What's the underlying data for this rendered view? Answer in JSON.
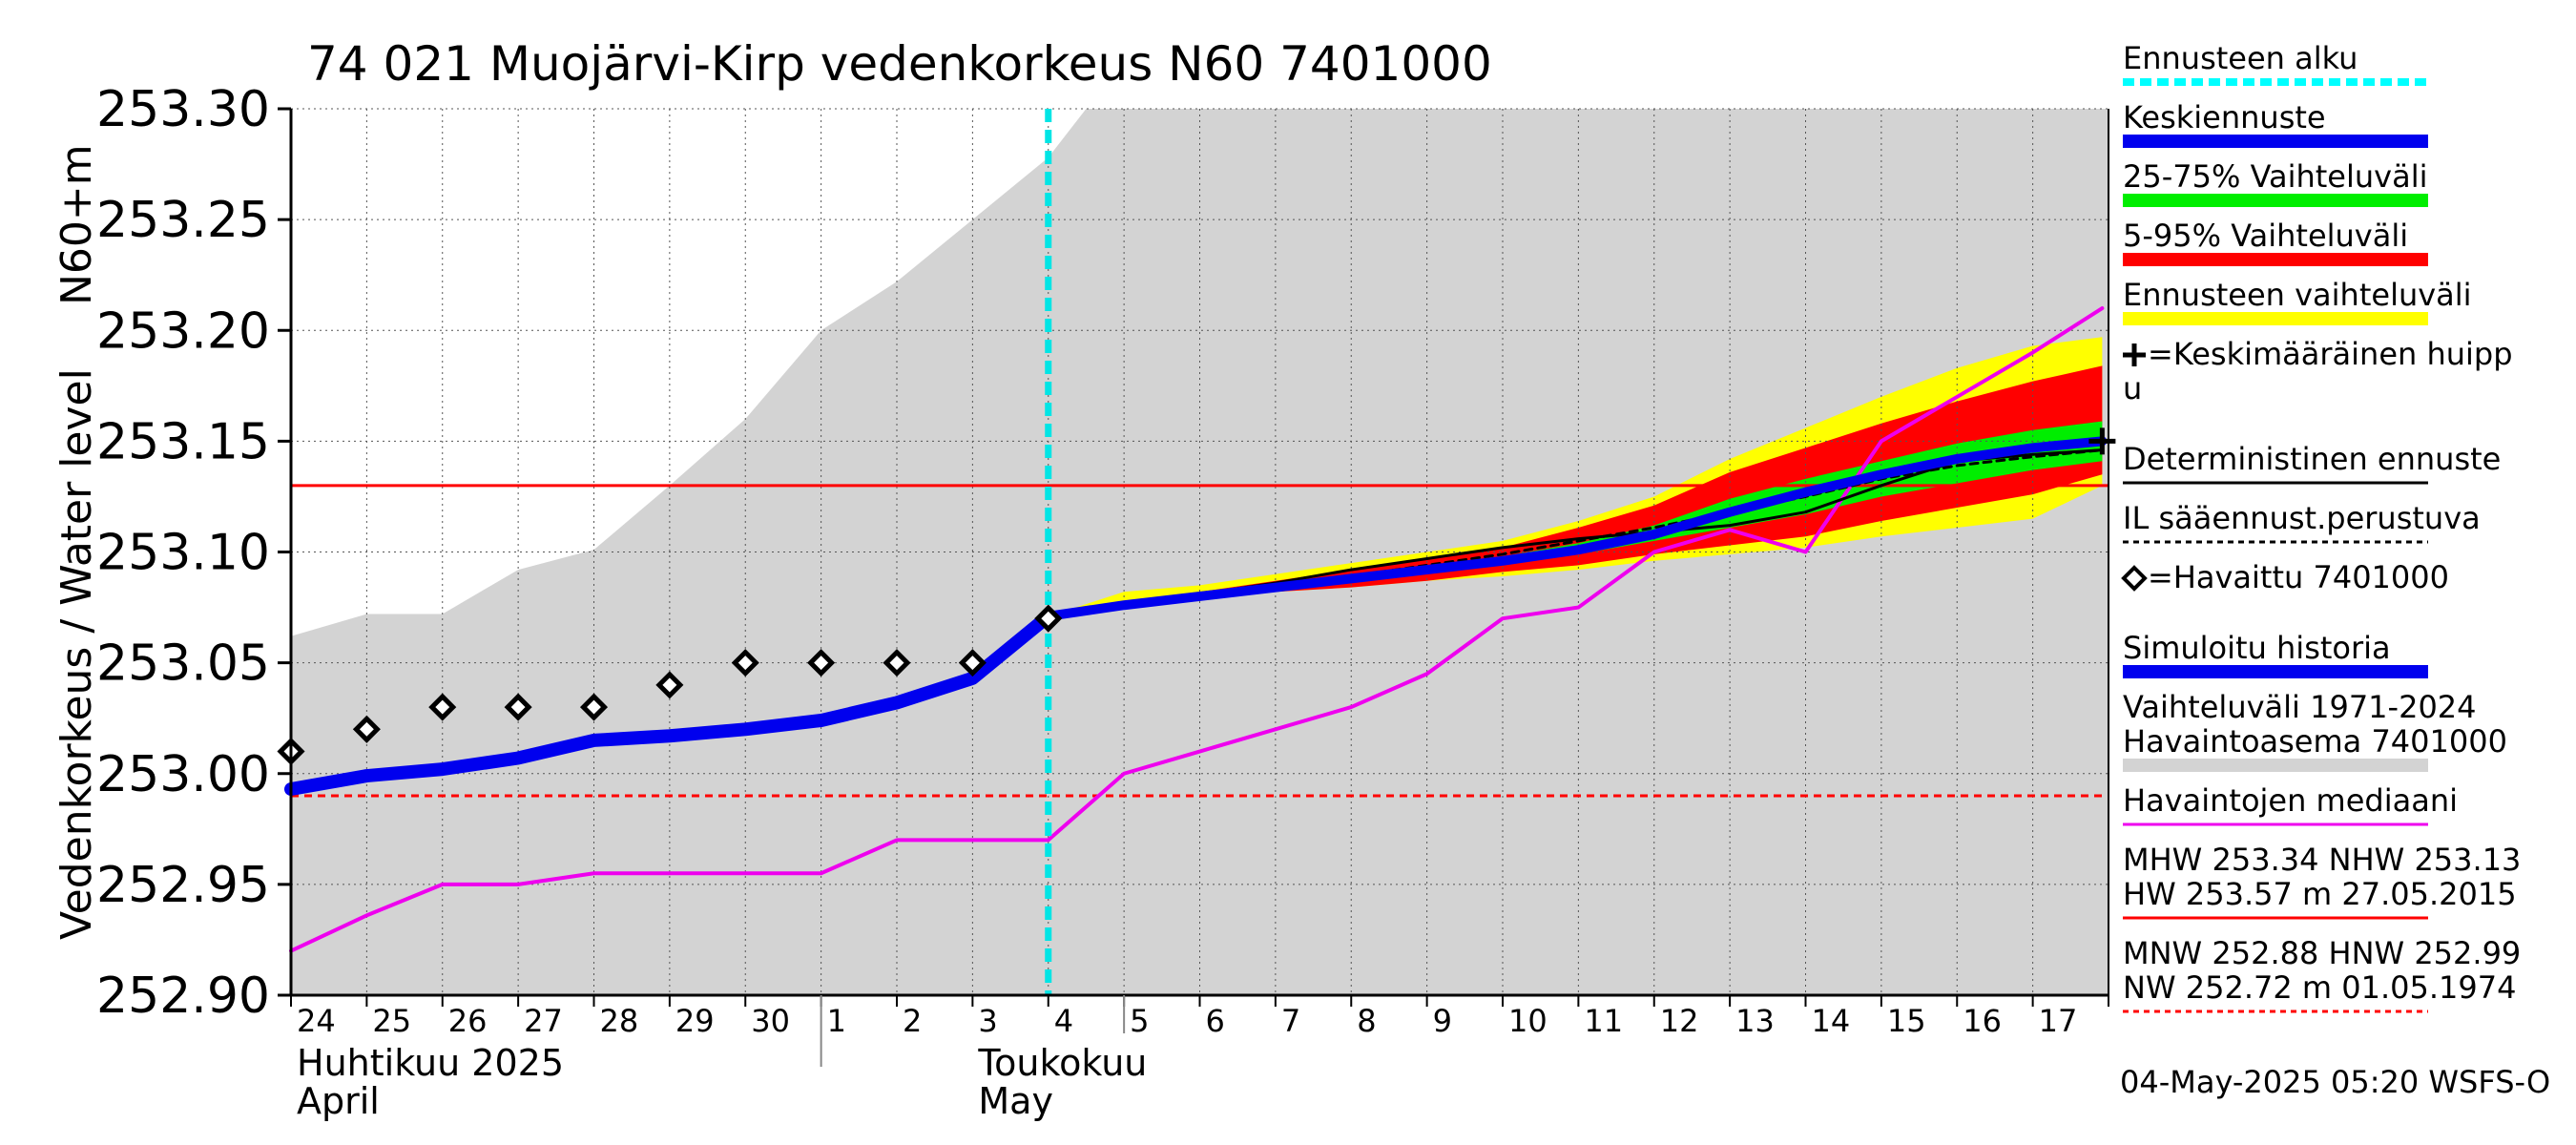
{
  "chart_data": {
    "type": "line",
    "title": "74 021 Muojärvi-Kirp vedenkorkeus N60 7401000",
    "ylabel_main": "Vedenkorkeus / Water level",
    "ylabel_unit": "N60+m",
    "ylim": [
      252.9,
      253.3
    ],
    "yticks": [
      "252.90",
      "252.95",
      "253.00",
      "253.05",
      "253.10",
      "253.15",
      "253.20",
      "253.25",
      "253.30"
    ],
    "x_start": "2025-04-24",
    "x_end": "2025-05-18",
    "xtick_labels": [
      "24",
      "25",
      "26",
      "27",
      "28",
      "29",
      "30",
      "1",
      "2",
      "3",
      "4",
      "5",
      "6",
      "7",
      "8",
      "9",
      "10",
      "11",
      "12",
      "13",
      "14",
      "15",
      "16",
      "17"
    ],
    "month_labels": [
      {
        "fi": "Huhtikuu  2025",
        "en": "April"
      },
      {
        "fi": "Toukokuu",
        "en": "May"
      }
    ],
    "grid": true,
    "forecast_start": "2025-05-04",
    "series": [
      {
        "name": "Vaihteluväli 1971-2024 Havaintoasema 7401000",
        "color": "#d3d3d3",
        "type": "band",
        "x": [
          "2025-04-24",
          "2025-04-25",
          "2025-04-26",
          "2025-04-27",
          "2025-04-28",
          "2025-04-29",
          "2025-04-30",
          "2025-05-01",
          "2025-05-02",
          "2025-05-03",
          "2025-05-04",
          "2025-05-04T12",
          "2025-05-18"
        ],
        "upper": [
          253.062,
          253.072,
          253.072,
          253.092,
          253.101,
          253.13,
          253.16,
          253.2,
          253.222,
          253.25,
          253.278,
          253.3,
          253.3
        ],
        "lower": [
          252.9,
          252.9,
          252.9,
          252.9,
          252.9,
          252.9,
          252.9,
          252.9,
          252.9,
          252.9,
          252.9,
          252.9,
          252.9
        ]
      },
      {
        "name": "Ennusteen vaihteluväli",
        "color": "#ffff00",
        "type": "band",
        "x": [
          "2025-05-04",
          "2025-05-05",
          "2025-05-06",
          "2025-05-07",
          "2025-05-08",
          "2025-05-09",
          "2025-05-10",
          "2025-05-11",
          "2025-05-12",
          "2025-05-13",
          "2025-05-14",
          "2025-05-15",
          "2025-05-16",
          "2025-05-17",
          "2025-05-17T22"
        ],
        "upper": [
          253.071,
          253.082,
          253.085,
          253.09,
          253.095,
          253.1,
          253.105,
          253.114,
          253.125,
          253.142,
          253.156,
          253.17,
          253.183,
          253.193,
          253.197
        ],
        "lower": [
          253.071,
          253.075,
          253.079,
          253.082,
          253.084,
          253.087,
          253.089,
          253.092,
          253.096,
          253.099,
          253.102,
          253.107,
          253.111,
          253.115,
          253.13
        ]
      },
      {
        "name": "5-95% Vaihteluväli",
        "color": "#ff0000",
        "type": "band",
        "x": [
          "2025-05-04",
          "2025-05-05",
          "2025-05-06",
          "2025-05-07",
          "2025-05-08",
          "2025-05-09",
          "2025-05-10",
          "2025-05-11",
          "2025-05-12",
          "2025-05-13",
          "2025-05-14",
          "2025-05-15",
          "2025-05-16",
          "2025-05-17",
          "2025-05-17T22"
        ],
        "upper": [
          253.071,
          253.078,
          253.082,
          253.087,
          253.092,
          253.097,
          253.102,
          253.111,
          253.121,
          253.136,
          253.147,
          253.158,
          253.168,
          253.177,
          253.184
        ],
        "lower": [
          253.071,
          253.075,
          253.079,
          253.082,
          253.084,
          253.087,
          253.091,
          253.094,
          253.099,
          253.103,
          253.107,
          253.114,
          253.12,
          253.126,
          253.135
        ]
      },
      {
        "name": "25-75% Vaihteluväli",
        "color": "#00ee00",
        "type": "band",
        "x": [
          "2025-05-04",
          "2025-05-05",
          "2025-05-06",
          "2025-05-07",
          "2025-05-08",
          "2025-05-09",
          "2025-05-10",
          "2025-05-11",
          "2025-05-12",
          "2025-05-13",
          "2025-05-14",
          "2025-05-15",
          "2025-05-16",
          "2025-05-17",
          "2025-05-17T22"
        ],
        "upper": [
          253.071,
          253.077,
          253.08,
          253.084,
          253.089,
          253.093,
          253.098,
          253.104,
          253.112,
          253.124,
          253.133,
          253.141,
          253.149,
          253.155,
          253.159
        ],
        "lower": [
          253.071,
          253.076,
          253.08,
          253.083,
          253.087,
          253.091,
          253.095,
          253.099,
          253.105,
          253.111,
          253.117,
          253.125,
          253.131,
          253.137,
          253.141
        ]
      },
      {
        "name": "Havaintojen mediaani",
        "color": "#ee00ee",
        "type": "line",
        "x": [
          "2025-04-24",
          "2025-04-25",
          "2025-04-26",
          "2025-04-27",
          "2025-04-28",
          "2025-04-29",
          "2025-04-30",
          "2025-05-01",
          "2025-05-02",
          "2025-05-03",
          "2025-05-04",
          "2025-05-05",
          "2025-05-06",
          "2025-05-07",
          "2025-05-08",
          "2025-05-09",
          "2025-05-10",
          "2025-05-11",
          "2025-05-12",
          "2025-05-13",
          "2025-05-14",
          "2025-05-15",
          "2025-05-16",
          "2025-05-17",
          "2025-05-17T22"
        ],
        "y": [
          252.92,
          252.936,
          252.95,
          252.95,
          252.955,
          252.955,
          252.955,
          252.955,
          252.97,
          252.97,
          252.97,
          253.0,
          253.01,
          253.02,
          253.03,
          253.045,
          253.07,
          253.075,
          253.1,
          253.11,
          253.1,
          253.15,
          253.17,
          253.19,
          253.21
        ]
      },
      {
        "name": "Simuloitu historia",
        "color": "#0000ee",
        "type": "line",
        "x": [
          "2025-04-24",
          "2025-04-25",
          "2025-04-26",
          "2025-04-27",
          "2025-04-28",
          "2025-04-29",
          "2025-04-30",
          "2025-05-01",
          "2025-05-02",
          "2025-05-03",
          "2025-05-04"
        ],
        "y": [
          252.993,
          252.999,
          253.002,
          253.007,
          253.015,
          253.017,
          253.02,
          253.024,
          253.032,
          253.043,
          253.071
        ]
      },
      {
        "name": "IL sääennust.perustuva",
        "color": "#000000",
        "type": "dashed",
        "x": [
          "2025-05-04",
          "2025-05-05",
          "2025-05-06",
          "2025-05-07",
          "2025-05-08",
          "2025-05-09",
          "2025-05-10",
          "2025-05-11",
          "2025-05-12",
          "2025-05-13",
          "2025-05-14",
          "2025-05-15",
          "2025-05-16",
          "2025-05-17",
          "2025-05-17T22"
        ],
        "y": [
          253.071,
          253.076,
          253.08,
          253.084,
          253.089,
          253.094,
          253.099,
          253.105,
          253.111,
          253.118,
          253.125,
          253.133,
          253.139,
          253.143,
          253.146
        ]
      },
      {
        "name": "Deterministinen ennuste",
        "color": "#000000",
        "type": "line",
        "x": [
          "2025-05-04",
          "2025-05-05",
          "2025-05-06",
          "2025-05-07",
          "2025-05-08",
          "2025-05-09",
          "2025-05-10",
          "2025-05-11",
          "2025-05-12",
          "2025-05-13",
          "2025-05-14",
          "2025-05-15",
          "2025-05-16",
          "2025-05-17",
          "2025-05-17T22"
        ],
        "y": [
          253.071,
          253.077,
          253.081,
          253.086,
          253.092,
          253.097,
          253.102,
          253.106,
          253.109,
          253.112,
          253.118,
          253.13,
          253.141,
          253.144,
          253.146
        ]
      },
      {
        "name": "Keskiennuste",
        "color": "#0000ee",
        "type": "line",
        "x": [
          "2025-05-04",
          "2025-05-05",
          "2025-05-06",
          "2025-05-07",
          "2025-05-08",
          "2025-05-09",
          "2025-05-10",
          "2025-05-11",
          "2025-05-12",
          "2025-05-13",
          "2025-05-14",
          "2025-05-15",
          "2025-05-16",
          "2025-05-17",
          "2025-05-17T22"
        ],
        "y": [
          253.071,
          253.076,
          253.08,
          253.084,
          253.088,
          253.092,
          253.096,
          253.101,
          253.108,
          253.118,
          253.127,
          253.135,
          253.142,
          253.147,
          253.15
        ]
      },
      {
        "name": "Havaittu 7401000",
        "color": "#000000",
        "type": "markers",
        "x": [
          "2025-04-24",
          "2025-04-25",
          "2025-04-26",
          "2025-04-27",
          "2025-04-28",
          "2025-04-29",
          "2025-04-30",
          "2025-05-01",
          "2025-05-02",
          "2025-05-03",
          "2025-05-04"
        ],
        "y": [
          253.01,
          253.02,
          253.03,
          253.03,
          253.03,
          253.04,
          253.05,
          253.05,
          253.05,
          253.05,
          253.07
        ]
      }
    ],
    "peak_marker": {
      "x": "2025-05-17T22",
      "y": 253.15
    },
    "reference_lines": [
      {
        "y": 253.13,
        "color": "#ff0000",
        "style": "solid"
      },
      {
        "y": 252.99,
        "color": "#ff0000",
        "style": "dashed"
      }
    ],
    "legend_position": "right",
    "legend": [
      {
        "label": "Ennusteen alku",
        "color": "#00ffff",
        "style": "dotted"
      },
      {
        "label": "Keskiennuste",
        "color": "#0000ee",
        "style": "thick"
      },
      {
        "label": "25-75% Vaihteluväli",
        "color": "#00ee00",
        "style": "thick"
      },
      {
        "label": "5-95% Vaihteluväli",
        "color": "#ff0000",
        "style": "thick"
      },
      {
        "label": "Ennusteen vaihteluväli",
        "color": "#ffff00",
        "style": "thick"
      },
      {
        "label_line1": "=Keskimääräinen huipp",
        "label_line2": "u",
        "color": "#000000",
        "style": "plus"
      },
      {
        "label": "Deterministinen ennuste",
        "color": "#000000",
        "style": "thin"
      },
      {
        "label": "IL sääennust.perustuva",
        "color": "#000000",
        "style": "dashed"
      },
      {
        "label": "=Havaittu 7401000",
        "color": "#000000",
        "style": "diamond"
      },
      {
        "label": "Simuloitu historia",
        "color": "#0000ee",
        "style": "thick"
      },
      {
        "label_line1": "Vaihteluväli 1971-2024",
        "label_line2": " Havaintoasema 7401000",
        "color": "#d3d3d3",
        "style": "thick"
      },
      {
        "label": "Havaintojen mediaani",
        "color": "#ee00ee",
        "style": "thin"
      },
      {
        "label_line1": "MHW 253.34 NHW 253.13",
        "label_line2": "HW 253.57 m 27.05.2015",
        "color": "#ff0000",
        "style": "thin"
      },
      {
        "label_line1": "MNW 252.88 HNW 252.99",
        "label_line2": "NW 252.72 m 01.05.1974",
        "color": "#ff0000",
        "style": "dashed"
      }
    ],
    "footer": "04-May-2025 05:20 WSFS-O"
  }
}
